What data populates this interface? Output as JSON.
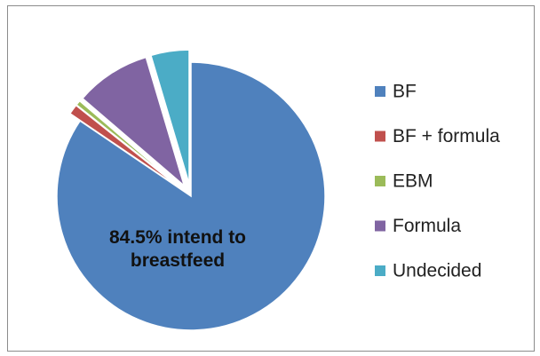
{
  "chart_data": {
    "type": "pie",
    "categories": [
      "BF",
      "BF + formula",
      "EBM",
      "Formula",
      "Undecided"
    ],
    "values": [
      84.5,
      1.2,
      0.6,
      9.1,
      4.6
    ],
    "colors": [
      "#4f81bd",
      "#c0504d",
      "#9bbb59",
      "#8064a2",
      "#4bacc6"
    ],
    "annotation": "84.5% intend to breastfeed",
    "legend": "right"
  }
}
